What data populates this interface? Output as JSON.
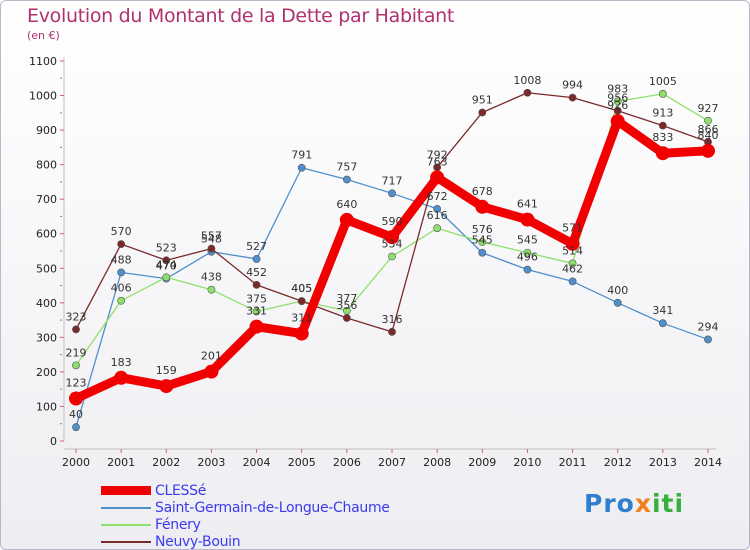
{
  "header": {
    "title": "Evolution du Montant de la Dette par Habitant",
    "unit": "(en €)"
  },
  "logo": {
    "text": "Proxiti",
    "parts": [
      "Pro",
      "x",
      "iti"
    ]
  },
  "chart_data": {
    "type": "line",
    "title": "Evolution du Montant de la Dette par Habitant",
    "ylabel": "(en €)",
    "xlabel": "",
    "x": [
      "2000",
      "2001",
      "2002",
      "2003",
      "2004",
      "2005",
      "2006",
      "2007",
      "2008",
      "2009",
      "2010",
      "2011",
      "2012",
      "2013",
      "2014"
    ],
    "yticks": [
      0,
      100,
      200,
      300,
      400,
      500,
      600,
      700,
      800,
      900,
      1000,
      1100
    ],
    "ylim": [
      0,
      1100
    ],
    "grid": false,
    "legend_position": "bottom-left",
    "series": [
      {
        "name": "Saint-Germain-de-Longue-Chaume",
        "color": "#4f8fcc",
        "values": [
          40,
          488,
          470,
          548,
          527,
          791,
          757,
          717,
          672,
          545,
          496,
          462,
          400,
          341,
          294
        ]
      },
      {
        "name": "Fénery",
        "color": "#8ee06c",
        "values": [
          219,
          406,
          474,
          438,
          375,
          405,
          377,
          534,
          616,
          576,
          545,
          514,
          983,
          1005,
          927
        ]
      },
      {
        "name": "Neuvy-Bouin",
        "color": "#7a2a2a",
        "values": [
          323,
          570,
          523,
          557,
          452,
          405,
          356,
          316,
          792,
          951,
          1008,
          994,
          956,
          913,
          866
        ]
      },
      {
        "name": "CLESSé",
        "color": "#f00000",
        "values": [
          123,
          183,
          159,
          201,
          331,
          311,
          640,
          590,
          763,
          678,
          641,
          571,
          926,
          833,
          840
        ]
      }
    ]
  }
}
